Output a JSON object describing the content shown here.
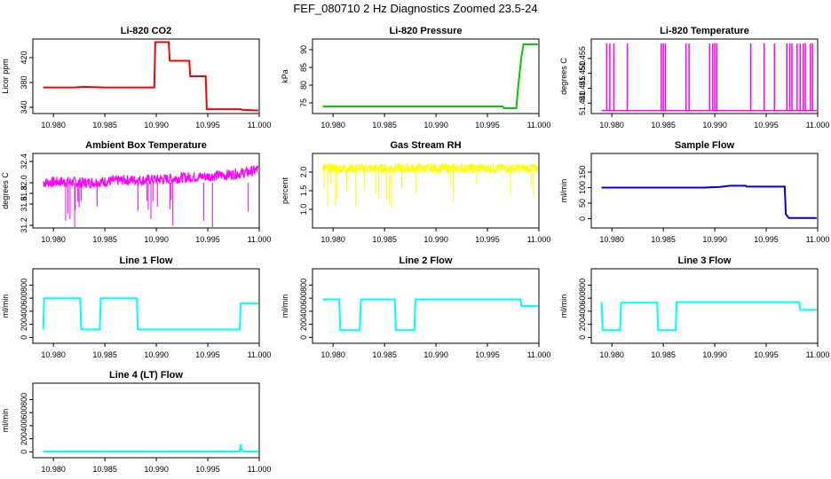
{
  "figure_title": "FEF_080710  2 Hz Diagnostics Zoomed 23.5-24",
  "colors": {
    "red": "#ff0000",
    "green": "#00cc00",
    "magenta": "#ff00ff",
    "yellow": "#ffff00",
    "blue": "#0000cc",
    "cyan": "#00ffff"
  },
  "chart_data": [
    {
      "type": "line",
      "title": "Li-820 CO2",
      "xlabel": "",
      "ylabel": "Licor ppm",
      "xlim": [
        10.978,
        11.0
      ],
      "ylim": [
        330,
        450
      ],
      "xticks": [
        "10.980",
        "10.985",
        "10.990",
        "10.995",
        "11.000"
      ],
      "yticks": [
        "340",
        "380",
        "420"
      ],
      "ytick_values": [
        340,
        380,
        420
      ],
      "color": "red",
      "x": [
        10.979,
        10.982,
        10.983,
        10.985,
        10.9898,
        10.9899,
        10.9912,
        10.9913,
        10.9932,
        10.9933,
        10.9948,
        10.9949,
        10.9982,
        10.9983,
        10.9999
      ],
      "y": [
        372,
        372,
        373,
        372,
        372,
        445,
        445,
        415,
        415,
        390,
        390,
        337,
        337,
        336,
        335
      ]
    },
    {
      "type": "line",
      "title": "Li-820 Pressure",
      "xlabel": "",
      "ylabel": "kPa",
      "xlim": [
        10.978,
        11.0
      ],
      "ylim": [
        72,
        93
      ],
      "xticks": [
        "10.980",
        "10.985",
        "10.990",
        "10.995",
        "11.000"
      ],
      "yticks": [
        "75",
        "80",
        "85",
        "90"
      ],
      "ytick_values": [
        75,
        80,
        85,
        90
      ],
      "color": "green",
      "x": [
        10.979,
        10.9965,
        10.9966,
        10.9978,
        10.998,
        10.9983,
        10.9985,
        10.9999
      ],
      "y": [
        74,
        74,
        73.5,
        73.5,
        80,
        88,
        91.5,
        91.5
      ]
    },
    {
      "type": "line",
      "title": "Li-820 Temperature",
      "xlabel": "",
      "ylabel": "degrees C",
      "xlim": [
        10.978,
        11.0
      ],
      "ylim": [
        51.4365,
        51.4615
      ],
      "xticks": [
        "10.980",
        "10.985",
        "10.990",
        "10.995",
        "11.000"
      ],
      "yticks": [
        "51.440",
        "51.445",
        "51.450",
        "51.455"
      ],
      "ytick_values": [
        51.44,
        51.445,
        51.45,
        51.455
      ],
      "color": "magenta",
      "baseline": 51.4375,
      "spike_top": 51.46,
      "spikes": [
        10.9795,
        10.9798,
        10.9802,
        10.9815,
        10.9848,
        10.985,
        10.9852,
        10.9872,
        10.9875,
        10.9895,
        10.9898,
        10.99,
        10.9902,
        10.9935,
        10.9948,
        10.9958,
        10.997,
        10.9973,
        10.9975,
        10.998,
        10.9983,
        10.9986,
        10.9988,
        10.9993,
        10.9995
      ]
    },
    {
      "type": "line",
      "title": "Ambient Box Temperature",
      "xlabel": "",
      "ylabel": "degrees C",
      "xlim": [
        10.978,
        11.0
      ],
      "ylim": [
        31.15,
        32.55
      ],
      "xticks": [
        "10.980",
        "10.985",
        "10.990",
        "10.995",
        "11.000"
      ],
      "yticks": [
        "31.2",
        "31.6",
        "31.8",
        "32.0",
        "32.4"
      ],
      "ytick_values": [
        31.2,
        31.6,
        31.8,
        32.0,
        32.4
      ],
      "color": "magenta",
      "x": [
        10.979,
        10.981,
        10.983,
        10.985,
        10.987,
        10.989,
        10.991,
        10.993,
        10.995,
        10.997,
        10.999,
        10.9999
      ],
      "y": [
        32.0,
        32.02,
        32.0,
        32.02,
        32.05,
        32.05,
        32.07,
        32.1,
        32.12,
        32.15,
        32.2,
        32.25
      ],
      "noise_band": 0.2
    },
    {
      "type": "line",
      "title": "Gas Stream RH",
      "xlabel": "",
      "ylabel": "percent",
      "xlim": [
        10.978,
        11.0
      ],
      "ylim": [
        0.5,
        2.5
      ],
      "xticks": [
        "10.980",
        "10.985",
        "10.990",
        "10.995",
        "11.000"
      ],
      "yticks": [
        "1.0",
        "1.5",
        "2.0"
      ],
      "ytick_values": [
        1.0,
        1.5,
        2.0
      ],
      "color": "yellow",
      "x": [
        10.979,
        10.9999
      ],
      "y": [
        2.1,
        2.1
      ],
      "noise_band": 0.25
    },
    {
      "type": "line",
      "title": "Sample Flow",
      "xlabel": "",
      "ylabel": "ml/min",
      "xlim": [
        10.978,
        11.0
      ],
      "ylim": [
        -30,
        210
      ],
      "xticks": [
        "10.980",
        "10.985",
        "10.990",
        "10.995",
        "11.000"
      ],
      "yticks": [
        "0",
        "50",
        "100",
        "150"
      ],
      "ytick_values": [
        0,
        50,
        100,
        150
      ],
      "color": "blue",
      "x": [
        10.979,
        10.989,
        10.9905,
        10.9915,
        10.993,
        10.9931,
        10.9968,
        10.9969,
        10.9972,
        10.9999
      ],
      "y": [
        100,
        100,
        102,
        106,
        106,
        103,
        103,
        15,
        2,
        2
      ]
    },
    {
      "type": "line",
      "title": "Line 1 Flow",
      "xlabel": "",
      "ylabel": "ml/min",
      "xlim": [
        10.978,
        11.0
      ],
      "ylim": [
        -90,
        1050
      ],
      "xticks": [
        "10.980",
        "10.985",
        "10.990",
        "10.995",
        "11.000"
      ],
      "yticks": [
        "0",
        "200",
        "400",
        "600",
        "800"
      ],
      "ytick_values": [
        0,
        200,
        400,
        600,
        800
      ],
      "color": "cyan",
      "x": [
        10.979,
        10.9791,
        10.9826,
        10.9827,
        10.9845,
        10.9846,
        10.9881,
        10.9882,
        10.9981,
        10.9982,
        10.9999
      ],
      "y": [
        120,
        600,
        600,
        120,
        120,
        600,
        600,
        120,
        120,
        520,
        520
      ]
    },
    {
      "type": "line",
      "title": "Line 2 Flow",
      "xlabel": "",
      "ylabel": "ml/min",
      "xlim": [
        10.978,
        11.0
      ],
      "ylim": [
        -90,
        1050
      ],
      "xticks": [
        "10.980",
        "10.985",
        "10.990",
        "10.995",
        "11.000"
      ],
      "yticks": [
        "0",
        "200",
        "400",
        "600",
        "800"
      ],
      "ytick_values": [
        0,
        200,
        400,
        600,
        800
      ],
      "color": "cyan",
      "x": [
        10.979,
        10.9806,
        10.9807,
        10.9826,
        10.9827,
        10.986,
        10.9861,
        10.9879,
        10.988,
        10.9982,
        10.9983,
        10.9999
      ],
      "y": [
        580,
        580,
        110,
        110,
        580,
        580,
        110,
        110,
        580,
        580,
        480,
        480
      ]
    },
    {
      "type": "line",
      "title": "Line 3 Flow",
      "xlabel": "",
      "ylabel": "ml/min",
      "xlim": [
        10.978,
        11.0
      ],
      "ylim": [
        -90,
        1050
      ],
      "xticks": [
        "10.980",
        "10.985",
        "10.990",
        "10.995",
        "11.000"
      ],
      "yticks": [
        "0",
        "200",
        "400",
        "600",
        "800"
      ],
      "ytick_values": [
        0,
        200,
        400,
        600,
        800
      ],
      "color": "cyan",
      "x": [
        10.979,
        10.9791,
        10.9808,
        10.9809,
        10.9844,
        10.9845,
        10.9862,
        10.9863,
        10.9982,
        10.9983,
        10.9999
      ],
      "y": [
        540,
        110,
        110,
        530,
        530,
        110,
        110,
        540,
        540,
        420,
        420
      ]
    },
    {
      "type": "line",
      "title": "Line 4 (LT) Flow",
      "xlabel": "",
      "ylabel": "ml/min",
      "xlim": [
        10.978,
        11.0
      ],
      "ylim": [
        -90,
        1050
      ],
      "xticks": [
        "10.980",
        "10.985",
        "10.990",
        "10.995",
        "11.000"
      ],
      "yticks": [
        "0",
        "200",
        "400",
        "600",
        "800"
      ],
      "ytick_values": [
        0,
        200,
        400,
        600,
        800
      ],
      "color": "cyan",
      "x": [
        10.979,
        10.9981,
        10.9982,
        10.9983,
        10.9985,
        10.9999
      ],
      "y": [
        5,
        5,
        110,
        20,
        5,
        5
      ]
    }
  ]
}
